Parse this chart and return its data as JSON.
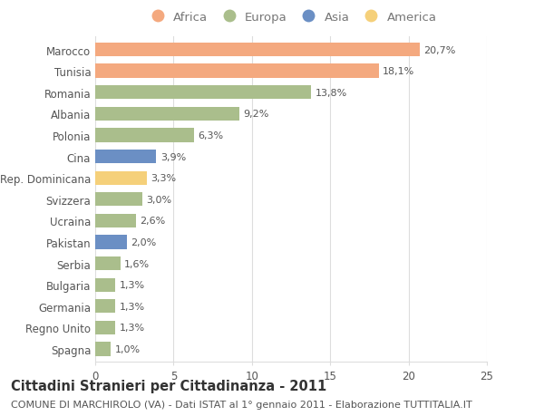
{
  "countries": [
    "Marocco",
    "Tunisia",
    "Romania",
    "Albania",
    "Polonia",
    "Cina",
    "Rep. Dominicana",
    "Svizzera",
    "Ucraina",
    "Pakistan",
    "Serbia",
    "Bulgaria",
    "Germania",
    "Regno Unito",
    "Spagna"
  ],
  "values": [
    20.7,
    18.1,
    13.8,
    9.2,
    6.3,
    3.9,
    3.3,
    3.0,
    2.6,
    2.0,
    1.6,
    1.3,
    1.3,
    1.3,
    1.0
  ],
  "labels": [
    "20,7%",
    "18,1%",
    "13,8%",
    "9,2%",
    "6,3%",
    "3,9%",
    "3,3%",
    "3,0%",
    "2,6%",
    "2,0%",
    "1,6%",
    "1,3%",
    "1,3%",
    "1,3%",
    "1,0%"
  ],
  "continent": [
    "Africa",
    "Africa",
    "Europa",
    "Europa",
    "Europa",
    "Asia",
    "America",
    "Europa",
    "Europa",
    "Asia",
    "Europa",
    "Europa",
    "Europa",
    "Europa",
    "Europa"
  ],
  "colors": {
    "Africa": "#F4A97F",
    "Europa": "#AABE8C",
    "Asia": "#6B8FC4",
    "America": "#F5D07A"
  },
  "legend_order": [
    "Africa",
    "Europa",
    "Asia",
    "America"
  ],
  "xlim": [
    0,
    25
  ],
  "xticks": [
    0,
    5,
    10,
    15,
    20,
    25
  ],
  "title": "Cittadini Stranieri per Cittadinanza - 2011",
  "subtitle": "COMUNE DI MARCHIROLO (VA) - Dati ISTAT al 1° gennaio 2011 - Elaborazione TUTTITALIA.IT",
  "bg_color": "#FFFFFF",
  "grid_color": "#DDDDDD",
  "bar_height": 0.65,
  "title_fontsize": 10.5,
  "subtitle_fontsize": 8,
  "label_fontsize": 8,
  "tick_fontsize": 8.5,
  "legend_fontsize": 9.5
}
